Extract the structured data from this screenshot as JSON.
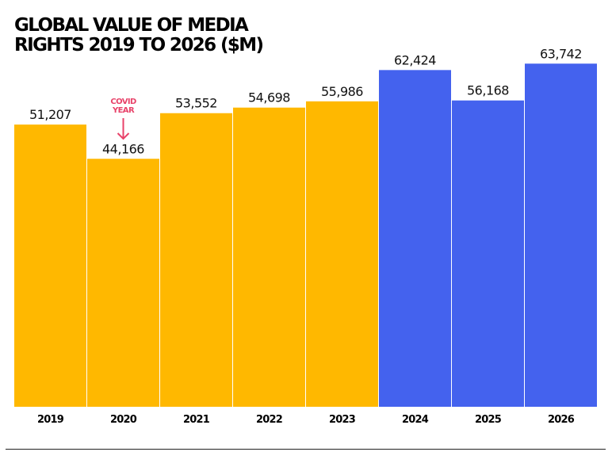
{
  "title": "GLOBAL VALUE OF MEDIA\nRIGHTS 2019 TO 2026 ($M)",
  "chart_data": {
    "type": "bar",
    "title": "GLOBAL VALUE OF MEDIA RIGHTS 2019 TO 2026 ($M)",
    "categories": [
      "2019",
      "2020",
      "2021",
      "2022",
      "2023",
      "2024",
      "2025",
      "2026"
    ],
    "values": [
      51207,
      44166,
      53552,
      54698,
      55986,
      62424,
      56168,
      63742
    ],
    "value_labels": [
      "51,207",
      "44,166",
      "53,552",
      "54,698",
      "55,986",
      "62,424",
      "56,168",
      "63,742"
    ],
    "colors": [
      "#FFB800",
      "#FFB800",
      "#FFB800",
      "#FFB800",
      "#FFB800",
      "#4462EE",
      "#4462EE",
      "#4462EE"
    ],
    "annotations": [
      {
        "category": "2020",
        "text": [
          "COVID",
          "YEAR"
        ],
        "icon": "arrow-down-icon",
        "color": "#E8436A"
      }
    ],
    "xlabel": "",
    "ylabel": "",
    "grid": false,
    "legend": "none"
  }
}
